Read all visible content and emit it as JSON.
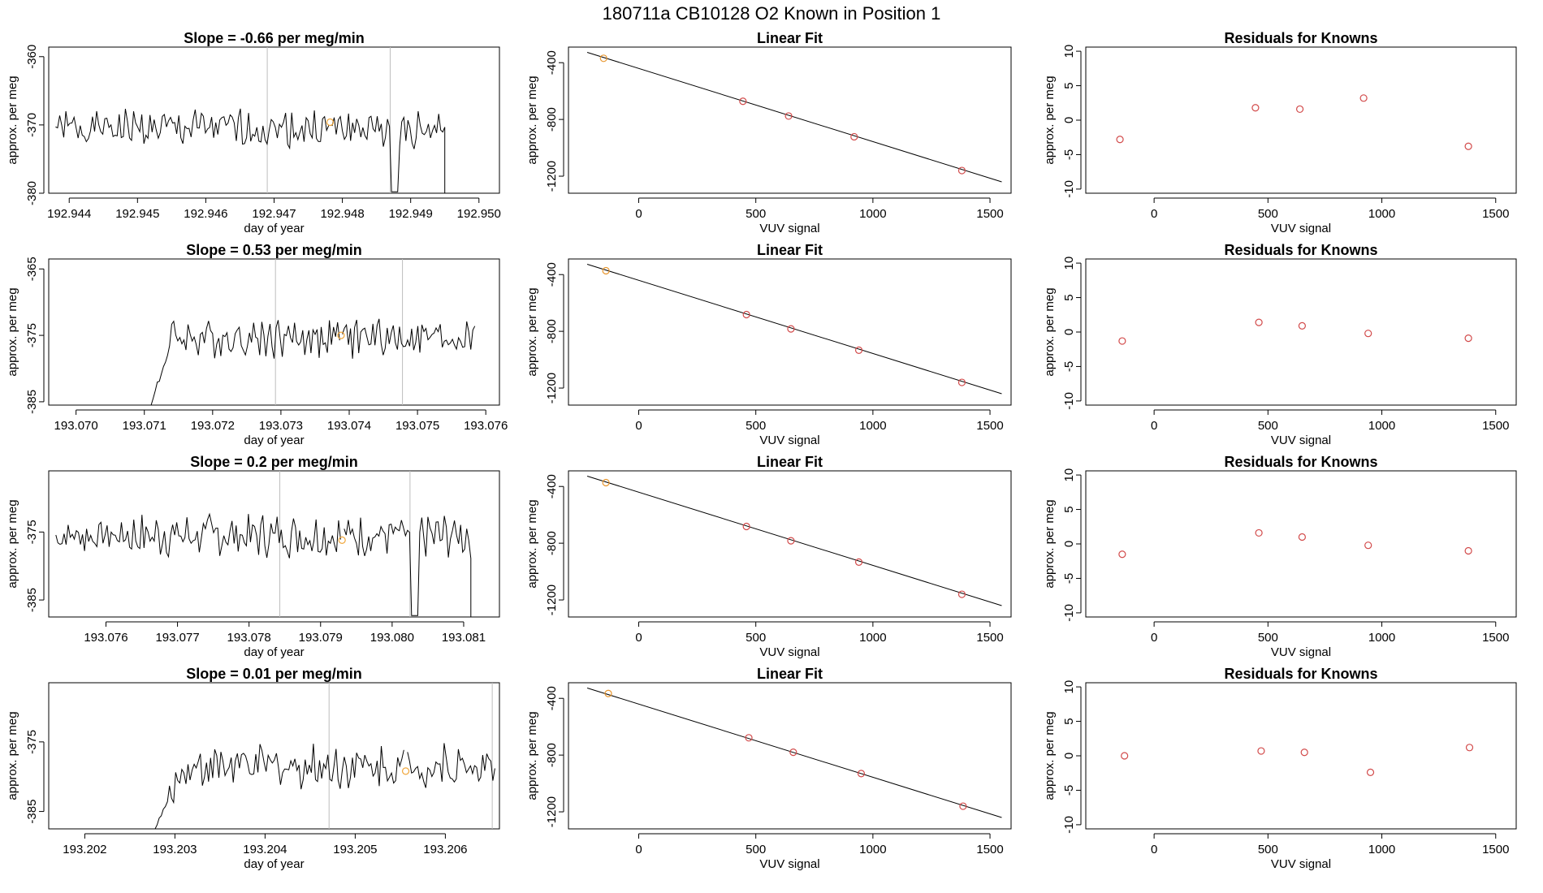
{
  "page": {
    "title": "180711a      CB10128    O2 Known in Position  1"
  },
  "chart_data": [
    {
      "id": "ts1",
      "type": "line",
      "panel": "timeseries",
      "title": "Slope =  -0.66  per meg/min",
      "xlabel": "day of year",
      "ylabel": "approx. per meg",
      "xlim": [
        192.9437,
        192.9503
      ],
      "ylim": [
        -380,
        -358.6
      ],
      "xticks": [
        192.944,
        192.945,
        192.946,
        192.947,
        192.948,
        192.949,
        192.95
      ],
      "xtick_labels": [
        "192.944",
        "192.945",
        "192.946",
        "192.947",
        "192.948",
        "192.949",
        "192.950"
      ],
      "yticks": [
        -380,
        -370,
        -360
      ],
      "ytick_labels": [
        "-380",
        "-370",
        "-360"
      ],
      "vlines": [
        192.9469,
        192.9487
      ],
      "seg_start": 192.9438,
      "gap_start": 192.9478,
      "gap_end": 192.94785,
      "seg_end": 192.9495,
      "mean": -370.5,
      "amp": 2.3,
      "ramp": null,
      "end_drop": true,
      "mid_drop": true,
      "marker": {
        "x": 192.94782,
        "y": -369.6
      }
    },
    {
      "id": "fit1",
      "type": "scatter",
      "panel": "fit",
      "title": "Linear Fit",
      "xlabel": "VUV signal",
      "ylabel": "approx. per meg",
      "xlim": [
        -300,
        1590
      ],
      "ylim": [
        -1320,
        -290
      ],
      "xticks": [
        0,
        500,
        1000,
        1500
      ],
      "xtick_labels": [
        "0",
        "500",
        "1000",
        "1500"
      ],
      "yticks": [
        -1200,
        -800,
        -400
      ],
      "ytick_labels": [
        "-1200",
        "-800",
        "-400"
      ],
      "line": {
        "x0": -220,
        "y0": -327,
        "x1": 1550,
        "y1": -1240
      },
      "points": [
        {
          "x": -150,
          "y": -369,
          "known": false
        },
        {
          "x": 445,
          "y": -672,
          "known": true
        },
        {
          "x": 640,
          "y": -776,
          "known": true
        },
        {
          "x": 920,
          "y": -922,
          "known": true
        },
        {
          "x": 1380,
          "y": -1160,
          "known": true
        }
      ]
    },
    {
      "id": "res1",
      "type": "scatter",
      "panel": "residuals",
      "title": "Residuals for Knowns",
      "xlabel": "VUV signal",
      "ylabel": "approx. per meg",
      "xlim": [
        -300,
        1590
      ],
      "ylim": [
        -10.6,
        10.6
      ],
      "xticks": [
        0,
        500,
        1000,
        1500
      ],
      "xtick_labels": [
        "0",
        "500",
        "1000",
        "1500"
      ],
      "yticks": [
        -10,
        -5,
        0,
        5,
        10
      ],
      "ytick_labels": [
        "-10",
        "-5",
        "0",
        "5",
        "10"
      ],
      "points": [
        {
          "x": -150,
          "y": -2.8
        },
        {
          "x": 445,
          "y": 1.8
        },
        {
          "x": 640,
          "y": 1.6
        },
        {
          "x": 920,
          "y": 3.2
        },
        {
          "x": 1380,
          "y": -3.8
        }
      ]
    },
    {
      "id": "ts2",
      "type": "line",
      "panel": "timeseries",
      "title": "Slope =  0.53  per meg/min",
      "xlabel": "day of year",
      "ylabel": "approx. per meg",
      "xlim": [
        193.0696,
        193.0762
      ],
      "ylim": [
        -385.5,
        -363.5
      ],
      "xticks": [
        193.07,
        193.071,
        193.072,
        193.073,
        193.074,
        193.075,
        193.076
      ],
      "xtick_labels": [
        "193.070",
        "193.071",
        "193.072",
        "193.073",
        "193.074",
        "193.075",
        "193.076"
      ],
      "yticks": [
        -385,
        -375,
        -365
      ],
      "ytick_labels": [
        "-385",
        "-375",
        "-365"
      ],
      "vlines": [
        193.07292,
        193.07478
      ],
      "seg_start": 193.0711,
      "gap_start": 193.07386,
      "gap_end": 193.0739,
      "seg_end": 193.07584,
      "mean": -375.3,
      "amp": 2.5,
      "ramp": {
        "until": 193.0714,
        "from": -385.5
      },
      "end_drop": false,
      "mid_drop": false,
      "marker": {
        "x": 193.07388,
        "y": -375.0
      }
    },
    {
      "id": "fit2",
      "type": "scatter",
      "panel": "fit",
      "title": "Linear Fit",
      "xlabel": "VUV signal",
      "ylabel": "approx. per meg",
      "xlim": [
        -300,
        1590
      ],
      "ylim": [
        -1320,
        -290
      ],
      "xticks": [
        0,
        500,
        1000,
        1500
      ],
      "xtick_labels": [
        "0",
        "500",
        "1000",
        "1500"
      ],
      "yticks": [
        -1200,
        -800,
        -400
      ],
      "ytick_labels": [
        "-1200",
        "-800",
        "-400"
      ],
      "line": {
        "x0": -220,
        "y0": -327,
        "x1": 1550,
        "y1": -1240
      },
      "points": [
        {
          "x": -140,
          "y": -373,
          "known": false
        },
        {
          "x": 460,
          "y": -682,
          "known": true
        },
        {
          "x": 650,
          "y": -783,
          "known": true
        },
        {
          "x": 940,
          "y": -933,
          "known": true
        },
        {
          "x": 1380,
          "y": -1160,
          "known": true
        }
      ]
    },
    {
      "id": "res2",
      "type": "scatter",
      "panel": "residuals",
      "title": "Residuals for Knowns",
      "xlabel": "VUV signal",
      "ylabel": "approx. per meg",
      "xlim": [
        -300,
        1590
      ],
      "ylim": [
        -10.6,
        10.6
      ],
      "xticks": [
        0,
        500,
        1000,
        1500
      ],
      "xtick_labels": [
        "0",
        "500",
        "1000",
        "1500"
      ],
      "yticks": [
        -10,
        -5,
        0,
        5,
        10
      ],
      "ytick_labels": [
        "-10",
        "-5",
        "0",
        "5",
        "10"
      ],
      "points": [
        {
          "x": -140,
          "y": -1.3
        },
        {
          "x": 460,
          "y": 1.4
        },
        {
          "x": 650,
          "y": 0.9
        },
        {
          "x": 940,
          "y": -0.2
        },
        {
          "x": 1380,
          "y": -0.9
        }
      ]
    },
    {
      "id": "ts3",
      "type": "line",
      "panel": "timeseries",
      "title": "Slope =  0.2  per meg/min",
      "xlabel": "day of year",
      "ylabel": "approx. per meg",
      "xlim": [
        193.0752,
        193.0815
      ],
      "ylim": [
        -387.5,
        -366
      ],
      "xticks": [
        193.076,
        193.077,
        193.078,
        193.079,
        193.08,
        193.081
      ],
      "xtick_labels": [
        "193.076",
        "193.077",
        "193.078",
        "193.079",
        "193.080",
        "193.081"
      ],
      "yticks": [
        -385,
        -375
      ],
      "ytick_labels": [
        "-385",
        "-375"
      ],
      "vlines": [
        193.07843,
        193.08025
      ],
      "seg_start": 193.0753,
      "gap_start": 193.07928,
      "gap_end": 193.07933,
      "seg_end": 193.0811,
      "mean": -375.5,
      "amp": 2.6,
      "ramp": null,
      "end_drop": true,
      "mid_drop": true,
      "marker": {
        "x": 193.0793,
        "y": -376.2
      }
    },
    {
      "id": "fit3",
      "type": "scatter",
      "panel": "fit",
      "title": "Linear Fit",
      "xlabel": "VUV signal",
      "ylabel": "approx. per meg",
      "xlim": [
        -300,
        1590
      ],
      "ylim": [
        -1320,
        -290
      ],
      "xticks": [
        0,
        500,
        1000,
        1500
      ],
      "xtick_labels": [
        "0",
        "500",
        "1000",
        "1500"
      ],
      "yticks": [
        -1200,
        -800,
        -400
      ],
      "ytick_labels": [
        "-1200",
        "-800",
        "-400"
      ],
      "line": {
        "x0": -220,
        "y0": -327,
        "x1": 1550,
        "y1": -1240
      },
      "points": [
        {
          "x": -140,
          "y": -373,
          "known": false
        },
        {
          "x": 460,
          "y": -682,
          "known": true
        },
        {
          "x": 650,
          "y": -783,
          "known": true
        },
        {
          "x": 940,
          "y": -933,
          "known": true
        },
        {
          "x": 1380,
          "y": -1160,
          "known": true
        }
      ]
    },
    {
      "id": "res3",
      "type": "scatter",
      "panel": "residuals",
      "title": "Residuals for Knowns",
      "xlabel": "VUV signal",
      "ylabel": "approx. per meg",
      "xlim": [
        -300,
        1590
      ],
      "ylim": [
        -10.6,
        10.6
      ],
      "xticks": [
        0,
        500,
        1000,
        1500
      ],
      "xtick_labels": [
        "0",
        "500",
        "1000",
        "1500"
      ],
      "yticks": [
        -10,
        -5,
        0,
        5,
        10
      ],
      "ytick_labels": [
        "-10",
        "-5",
        "0",
        "5",
        "10"
      ],
      "points": [
        {
          "x": -140,
          "y": -1.5
        },
        {
          "x": 460,
          "y": 1.6
        },
        {
          "x": 650,
          "y": 1.0
        },
        {
          "x": 940,
          "y": -0.2
        },
        {
          "x": 1380,
          "y": -1.0
        }
      ]
    },
    {
      "id": "ts4",
      "type": "line",
      "panel": "timeseries",
      "title": "Slope =  0.01  per meg/min",
      "xlabel": "day of year",
      "ylabel": "approx. per meg",
      "xlim": [
        193.2016,
        193.2066
      ],
      "ylim": [
        -387.5,
        -366.5
      ],
      "xticks": [
        193.202,
        193.203,
        193.204,
        193.205,
        193.206
      ],
      "xtick_labels": [
        "193.202",
        "193.203",
        "193.204",
        "193.205",
        "193.206"
      ],
      "yticks": [
        -385,
        -375
      ],
      "ytick_labels": [
        "-385",
        "-375"
      ],
      "vlines": [
        193.20471,
        193.20652
      ],
      "seg_start": 193.20278,
      "gap_start": 193.20554,
      "gap_end": 193.20558,
      "seg_end": 193.20655,
      "mean": -378.5,
      "amp": 2.6,
      "ramp": {
        "until": 193.2031,
        "from": -387.5
      },
      "end_drop": false,
      "mid_drop": false,
      "marker": {
        "x": 193.20556,
        "y": -379.2
      }
    },
    {
      "id": "fit4",
      "type": "scatter",
      "panel": "fit",
      "title": "Linear Fit",
      "xlabel": "VUV signal",
      "ylabel": "approx. per meg",
      "xlim": [
        -300,
        1590
      ],
      "ylim": [
        -1320,
        -290
      ],
      "xticks": [
        0,
        500,
        1000,
        1500
      ],
      "xtick_labels": [
        "0",
        "500",
        "1000",
        "1500"
      ],
      "yticks": [
        -1200,
        -800,
        -400
      ],
      "ytick_labels": [
        "-1200",
        "-800",
        "-400"
      ],
      "line": {
        "x0": -220,
        "y0": -327,
        "x1": 1550,
        "y1": -1240
      },
      "points": [
        {
          "x": -130,
          "y": -366,
          "known": false
        },
        {
          "x": 470,
          "y": -678,
          "known": true
        },
        {
          "x": 660,
          "y": -780,
          "known": true
        },
        {
          "x": 950,
          "y": -930,
          "known": true
        },
        {
          "x": 1385,
          "y": -1160,
          "known": true
        }
      ]
    },
    {
      "id": "res4",
      "type": "scatter",
      "panel": "residuals",
      "title": "Residuals for Knowns",
      "xlabel": "VUV signal",
      "ylabel": "approx. per meg",
      "xlim": [
        -300,
        1590
      ],
      "ylim": [
        -10.6,
        10.6
      ],
      "xticks": [
        0,
        500,
        1000,
        1500
      ],
      "xtick_labels": [
        "0",
        "500",
        "1000",
        "1500"
      ],
      "yticks": [
        -10,
        -5,
        0,
        5,
        10
      ],
      "ytick_labels": [
        "-10",
        "-5",
        "0",
        "5",
        "10"
      ],
      "points": [
        {
          "x": -130,
          "y": 0.0
        },
        {
          "x": 470,
          "y": 0.7
        },
        {
          "x": 660,
          "y": 0.5
        },
        {
          "x": 950,
          "y": -2.4
        },
        {
          "x": 1385,
          "y": 1.2
        }
      ]
    }
  ],
  "colors": {
    "axis": "#000000",
    "series": "#000000",
    "vline": "#bdbdbd",
    "marker": "#f0a63a",
    "known_point": "#d24a4a",
    "unknown_point": "#e8962e"
  }
}
